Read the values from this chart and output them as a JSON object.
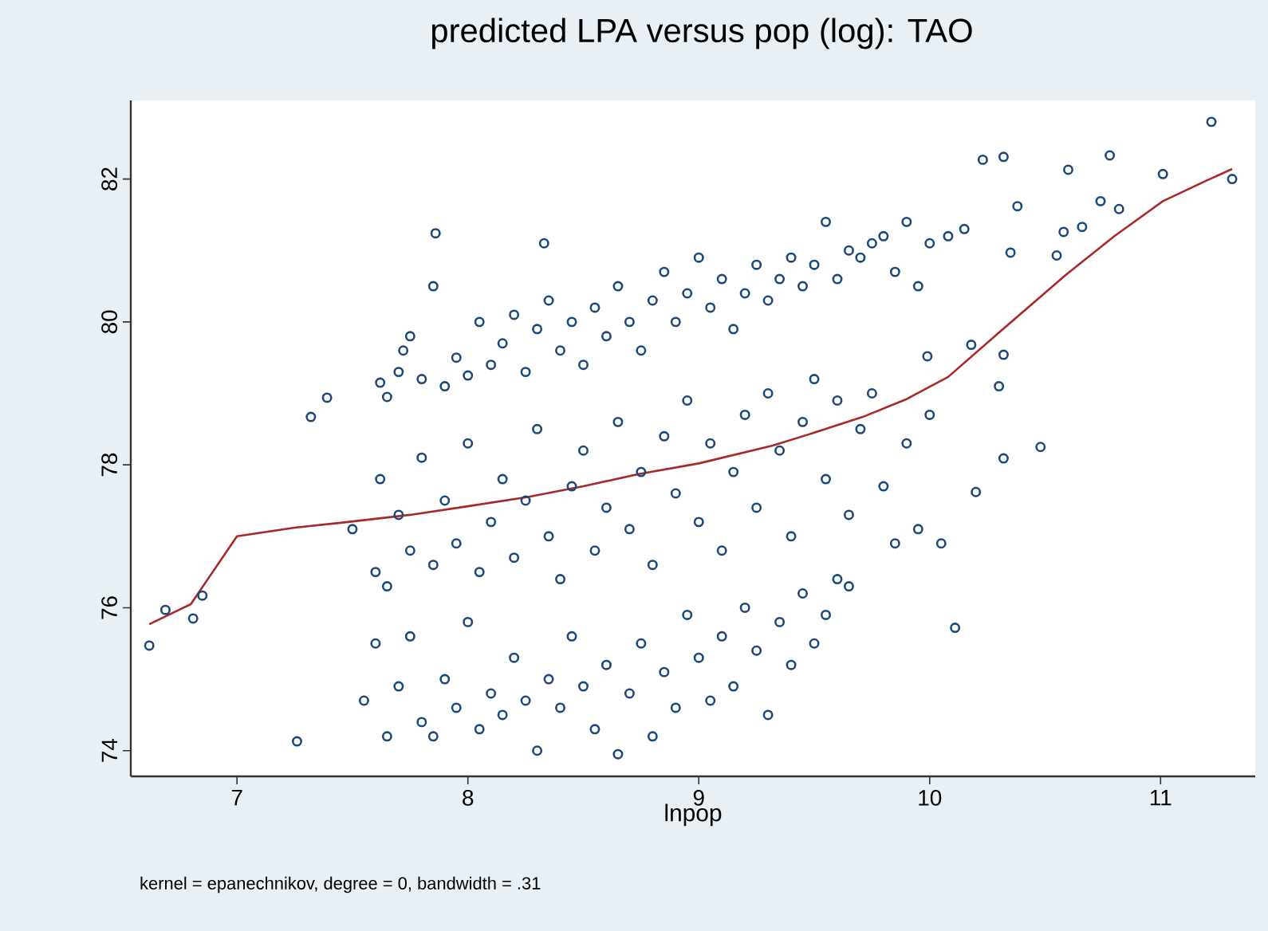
{
  "chart_data": {
    "type": "scatter",
    "title": "predicted LPA versus pop (log): TAO",
    "xlabel": "lnpop",
    "annotations": [
      "kernel = epanechnikov, degree = 0, bandwidth = .31"
    ],
    "xlim": [
      6.54,
      11.41
    ],
    "ylim": [
      73.64,
      83.1
    ],
    "xticks": [
      7,
      8,
      9,
      10,
      11
    ],
    "yticks": [
      74,
      76,
      78,
      80,
      82
    ],
    "grid": false,
    "series": [
      {
        "marker": "circle",
        "color": "#1c4a78",
        "x": [
          6.62,
          6.69,
          6.81,
          6.85,
          7.26,
          7.32,
          7.39,
          7.86,
          8.33,
          11.22,
          11.31,
          11.01,
          10.78,
          10.6,
          10.23,
          10.32,
          10.38,
          10.35,
          10.55,
          10.58,
          10.66,
          10.74,
          10.82,
          10.18,
          10.32,
          10.3,
          10.48,
          10.32,
          10.2,
          10.11,
          9.99,
          7.62,
          7.65,
          7.7,
          7.72,
          7.75,
          7.8,
          7.85,
          7.9,
          7.95,
          8.0,
          8.05,
          8.1,
          8.15,
          8.2,
          8.25,
          8.3,
          8.35,
          8.4,
          8.45,
          8.5,
          8.55,
          8.6,
          8.65,
          8.7,
          8.75,
          8.8,
          8.85,
          8.9,
          8.95,
          9.0,
          9.05,
          9.1,
          9.15,
          9.2,
          9.25,
          9.3,
          9.35,
          9.4,
          9.45,
          9.5,
          9.55,
          9.6,
          9.65,
          9.7,
          9.75,
          9.8,
          9.85,
          9.9,
          9.95,
          10.0,
          10.08,
          10.15,
          7.5,
          7.6,
          7.62,
          7.65,
          7.7,
          7.75,
          7.8,
          7.85,
          7.9,
          7.95,
          8.0,
          8.05,
          8.1,
          8.15,
          8.2,
          8.25,
          8.3,
          8.35,
          8.4,
          8.45,
          8.5,
          8.55,
          8.6,
          8.65,
          8.7,
          8.75,
          8.8,
          8.85,
          8.9,
          8.95,
          9.0,
          9.05,
          9.1,
          9.15,
          9.2,
          9.25,
          9.3,
          9.35,
          9.4,
          9.45,
          9.5,
          9.55,
          9.6,
          9.65,
          9.7,
          9.75,
          9.8,
          9.85,
          9.9,
          9.95,
          10.05,
          10.0,
          7.55,
          7.6,
          7.65,
          7.7,
          7.75,
          7.8,
          7.85,
          7.9,
          7.95,
          8.0,
          8.05,
          8.1,
          8.15,
          8.2,
          8.25,
          8.3,
          8.35,
          8.4,
          8.45,
          8.5,
          8.55,
          8.6,
          8.65,
          8.7,
          8.75,
          8.8,
          8.85,
          8.9,
          8.95,
          9.0,
          9.05,
          9.1,
          9.15,
          9.2,
          9.25,
          9.3,
          9.35,
          9.4,
          9.45,
          9.5,
          9.55,
          9.6,
          9.65
        ],
        "values": [
          75.47,
          75.97,
          75.85,
          76.17,
          74.13,
          78.67,
          78.94,
          81.24,
          81.1,
          82.8,
          82.0,
          82.07,
          82.33,
          82.13,
          82.27,
          82.31,
          81.62,
          80.97,
          80.93,
          81.26,
          81.33,
          81.69,
          81.58,
          79.68,
          79.54,
          79.1,
          78.25,
          78.09,
          77.62,
          75.72,
          79.52,
          79.15,
          78.95,
          79.3,
          79.6,
          79.8,
          79.2,
          80.5,
          79.1,
          79.5,
          79.25,
          80.0,
          79.4,
          79.7,
          80.1,
          79.3,
          79.9,
          80.3,
          79.6,
          80.0,
          79.4,
          80.2,
          79.8,
          80.5,
          80.0,
          79.6,
          80.3,
          80.7,
          80.0,
          80.4,
          80.9,
          80.2,
          80.6,
          79.9,
          80.4,
          80.8,
          80.3,
          80.6,
          80.9,
          80.5,
          80.8,
          81.4,
          80.6,
          81.0,
          80.9,
          81.1,
          81.2,
          80.7,
          81.4,
          80.5,
          81.1,
          81.2,
          81.3,
          77.1,
          76.5,
          77.8,
          76.3,
          77.3,
          76.8,
          78.1,
          76.6,
          77.5,
          76.9,
          78.3,
          76.5,
          77.2,
          77.8,
          76.7,
          77.5,
          78.5,
          77.0,
          76.4,
          77.7,
          78.2,
          76.8,
          77.4,
          78.6,
          77.1,
          77.9,
          76.6,
          78.4,
          77.6,
          78.9,
          77.2,
          78.3,
          76.8,
          77.9,
          78.7,
          77.4,
          79.0,
          78.2,
          77.0,
          78.6,
          79.2,
          77.8,
          78.9,
          77.3,
          78.5,
          79.0,
          77.7,
          76.9,
          78.3,
          77.1,
          76.9,
          78.7,
          74.7,
          75.5,
          74.2,
          74.9,
          75.6,
          74.4,
          74.2,
          75.0,
          74.6,
          75.8,
          74.3,
          74.8,
          74.5,
          75.3,
          74.7,
          74.0,
          75.0,
          74.6,
          75.6,
          74.9,
          74.3,
          75.2,
          73.95,
          74.8,
          75.5,
          74.2,
          75.1,
          74.6,
          75.9,
          75.3,
          74.7,
          75.6,
          74.9,
          76.0,
          75.4,
          74.5,
          75.8,
          75.2,
          76.2,
          75.5,
          75.9,
          76.4,
          76.3
        ]
      },
      {
        "type": "line",
        "marker": "none",
        "line_style": "solid",
        "color": "#a8282a",
        "x": [
          6.62,
          6.8,
          7.0,
          7.25,
          7.48,
          7.75,
          8.0,
          8.26,
          8.5,
          8.74,
          9.0,
          9.32,
          9.5,
          9.71,
          9.9,
          10.08,
          10.3,
          10.59,
          10.8,
          11.01,
          11.2,
          11.31
        ],
        "values": [
          75.77,
          76.05,
          77.0,
          77.12,
          77.2,
          77.3,
          77.42,
          77.55,
          77.7,
          77.87,
          78.02,
          78.27,
          78.45,
          78.67,
          78.92,
          79.23,
          79.85,
          80.66,
          81.2,
          81.69,
          81.98,
          82.14
        ]
      }
    ]
  }
}
